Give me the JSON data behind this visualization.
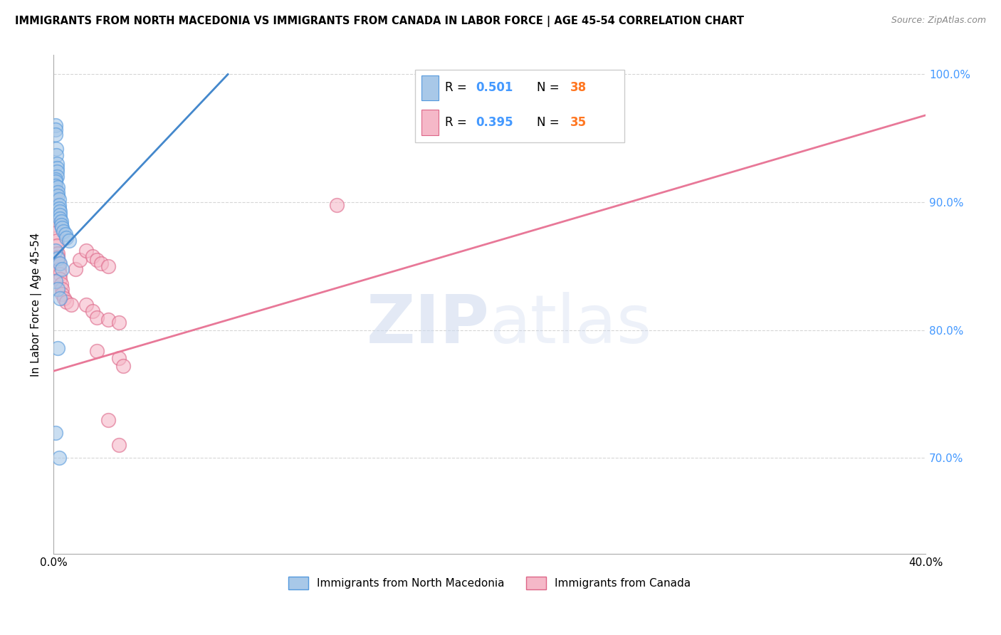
{
  "title": "IMMIGRANTS FROM NORTH MACEDONIA VS IMMIGRANTS FROM CANADA IN LABOR FORCE | AGE 45-54 CORRELATION CHART",
  "source": "Source: ZipAtlas.com",
  "legend_r1": "0.501",
  "legend_n1": "38",
  "legend_r2": "0.395",
  "legend_n2": "35",
  "legend_label1": "Immigrants from North Macedonia",
  "legend_label2": "Immigrants from Canada",
  "blue_color": "#a8c8e8",
  "pink_color": "#f5b8c8",
  "blue_line_color": "#4488cc",
  "pink_line_color": "#e87898",
  "blue_edge_color": "#5599dd",
  "pink_edge_color": "#dd6688",
  "rn_blue_color": "#4499ff",
  "rn_orange_color": "#ff7722",
  "watermark_color": "#ccd8ee",
  "right_axis_color": "#4499ff",
  "blue_dots": [
    [
      0.001,
      0.96
    ],
    [
      0.001,
      0.957
    ],
    [
      0.001,
      0.953
    ],
    [
      0.0012,
      0.942
    ],
    [
      0.0012,
      0.937
    ],
    [
      0.0015,
      0.93
    ],
    [
      0.0015,
      0.927
    ],
    [
      0.0015,
      0.924
    ],
    [
      0.0015,
      0.92
    ],
    [
      0.001,
      0.918
    ],
    [
      0.001,
      0.916
    ],
    [
      0.001,
      0.913
    ],
    [
      0.002,
      0.912
    ],
    [
      0.002,
      0.908
    ],
    [
      0.002,
      0.905
    ],
    [
      0.0025,
      0.902
    ],
    [
      0.0025,
      0.898
    ],
    [
      0.0025,
      0.895
    ],
    [
      0.003,
      0.893
    ],
    [
      0.003,
      0.89
    ],
    [
      0.003,
      0.887
    ],
    [
      0.0035,
      0.885
    ],
    [
      0.0035,
      0.882
    ],
    [
      0.004,
      0.88
    ],
    [
      0.0045,
      0.877
    ],
    [
      0.0055,
      0.875
    ],
    [
      0.006,
      0.872
    ],
    [
      0.007,
      0.87
    ],
    [
      0.001,
      0.862
    ],
    [
      0.002,
      0.856
    ],
    [
      0.003,
      0.852
    ],
    [
      0.004,
      0.848
    ],
    [
      0.001,
      0.838
    ],
    [
      0.002,
      0.832
    ],
    [
      0.003,
      0.825
    ],
    [
      0.002,
      0.786
    ],
    [
      0.001,
      0.72
    ],
    [
      0.0025,
      0.7
    ]
  ],
  "pink_dots": [
    [
      0.001,
      0.908
    ],
    [
      0.001,
      0.882
    ],
    [
      0.0012,
      0.876
    ],
    [
      0.0015,
      0.87
    ],
    [
      0.0015,
      0.866
    ],
    [
      0.002,
      0.86
    ],
    [
      0.002,
      0.857
    ],
    [
      0.0025,
      0.852
    ],
    [
      0.0025,
      0.848
    ],
    [
      0.003,
      0.844
    ],
    [
      0.003,
      0.84
    ],
    [
      0.0035,
      0.836
    ],
    [
      0.004,
      0.832
    ],
    [
      0.004,
      0.828
    ],
    [
      0.005,
      0.825
    ],
    [
      0.006,
      0.822
    ],
    [
      0.008,
      0.82
    ],
    [
      0.01,
      0.848
    ],
    [
      0.012,
      0.855
    ],
    [
      0.015,
      0.862
    ],
    [
      0.018,
      0.858
    ],
    [
      0.02,
      0.855
    ],
    [
      0.022,
      0.852
    ],
    [
      0.025,
      0.85
    ],
    [
      0.015,
      0.82
    ],
    [
      0.018,
      0.815
    ],
    [
      0.02,
      0.81
    ],
    [
      0.025,
      0.808
    ],
    [
      0.03,
      0.806
    ],
    [
      0.02,
      0.784
    ],
    [
      0.03,
      0.778
    ],
    [
      0.032,
      0.772
    ],
    [
      0.025,
      0.73
    ],
    [
      0.03,
      0.71
    ],
    [
      0.13,
      0.898
    ]
  ],
  "blue_line_x0": 0.0,
  "blue_line_x1": 0.08,
  "blue_line_y0": 0.856,
  "blue_line_y1": 1.0,
  "pink_line_x0": 0.0,
  "pink_line_x1": 0.4,
  "pink_line_y0": 0.768,
  "pink_line_y1": 0.968,
  "xmin": 0.0,
  "xmax": 0.4,
  "ymin": 0.625,
  "ymax": 1.015,
  "ylabel": "In Labor Force | Age 45-54",
  "xticks": [
    0.0,
    0.05,
    0.1,
    0.15,
    0.2,
    0.25,
    0.3,
    0.35,
    0.4
  ],
  "yticks": [
    0.7,
    0.8,
    0.9,
    1.0
  ]
}
